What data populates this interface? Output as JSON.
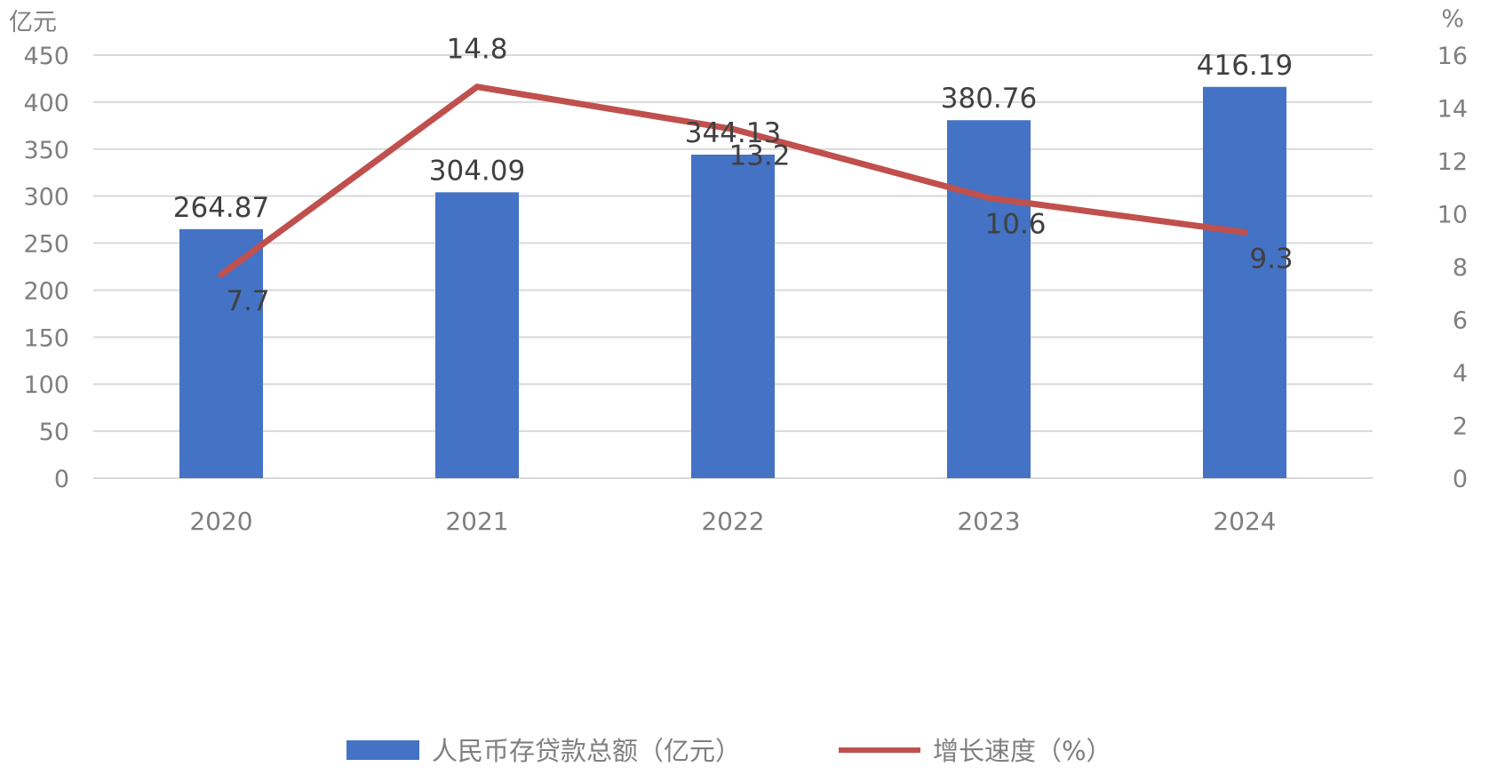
{
  "chart_data": {
    "type": "bar",
    "categories": [
      "2020",
      "2021",
      "2022",
      "2023",
      "2024"
    ],
    "series": [
      {
        "name": "人民币存贷款总额（亿元）",
        "kind": "bar",
        "axis": "left",
        "color": "#4472c4",
        "values": [
          264.87,
          304.09,
          344.13,
          380.76,
          416.19
        ],
        "labels": [
          "264.87",
          "304.09",
          "344.13",
          "380.76",
          "416.19"
        ]
      },
      {
        "name": "增长速度（%）",
        "kind": "line",
        "axis": "right",
        "color": "#c0504d",
        "values": [
          7.7,
          14.8,
          13.2,
          10.6,
          9.3
        ],
        "labels": [
          "7.7",
          "14.8",
          "13.2",
          "10.6",
          "9.3"
        ]
      }
    ],
    "ylabel_left": "亿元",
    "ylabel_right": "%",
    "ylim_left": [
      0,
      450
    ],
    "ylim_right": [
      0,
      16
    ],
    "yticks_left": [
      "0",
      "50",
      "100",
      "150",
      "200",
      "250",
      "300",
      "350",
      "400",
      "450"
    ],
    "yticks_right": [
      "0",
      "2",
      "4",
      "6",
      "8",
      "10",
      "12",
      "14",
      "16"
    ],
    "grid": true,
    "legend_position": "bottom"
  }
}
